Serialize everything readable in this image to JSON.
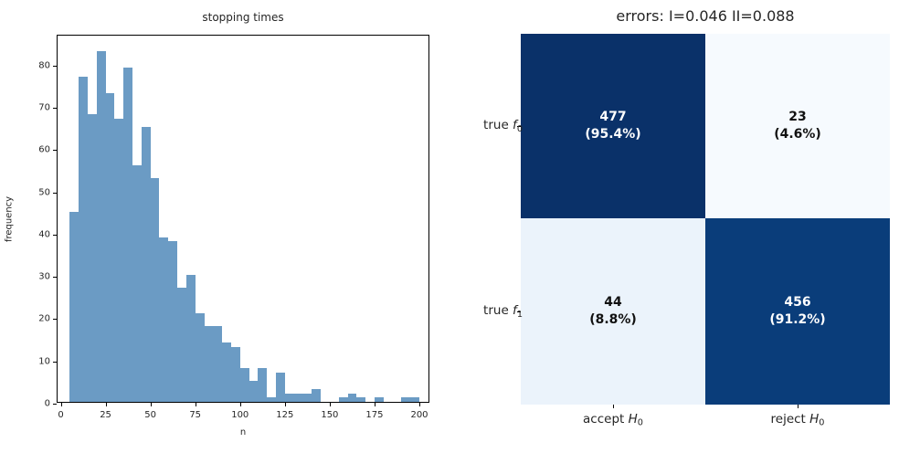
{
  "chart_data": [
    {
      "type": "bar",
      "subtype": "histogram",
      "title": "stopping times",
      "xlabel": "n",
      "ylabel": "frequency",
      "bin_start": 5,
      "bin_width": 5,
      "categories": [
        5,
        10,
        15,
        20,
        25,
        30,
        35,
        40,
        45,
        50,
        55,
        60,
        65,
        70,
        75,
        80,
        85,
        90,
        95,
        100,
        105,
        110,
        115,
        120,
        125,
        130,
        135,
        140,
        145,
        150,
        155,
        160,
        165,
        170,
        175,
        180,
        185,
        190,
        195
      ],
      "values": [
        45,
        77,
        68,
        83,
        73,
        67,
        79,
        56,
        65,
        53,
        39,
        38,
        27,
        30,
        21,
        18,
        18,
        14,
        13,
        8,
        5,
        8,
        1,
        7,
        2,
        2,
        2,
        3,
        0,
        0,
        1,
        2,
        1,
        0,
        1,
        0,
        0,
        1,
        1
      ],
      "xticks": [
        0,
        25,
        50,
        75,
        100,
        125,
        150,
        175,
        200
      ],
      "yticks": [
        0,
        10,
        20,
        30,
        40,
        50,
        60,
        70,
        80
      ],
      "xlim": [
        -2,
        208
      ],
      "ylim": [
        0,
        87
      ],
      "grid": false,
      "bar_color": "#6b9bc4"
    },
    {
      "type": "heatmap",
      "subtype": "confusion-matrix",
      "title": "errors: I=0.046 II=0.088",
      "row_labels": [
        {
          "prefix": "true ",
          "sym": "f",
          "sub": "0"
        },
        {
          "prefix": "true ",
          "sym": "f",
          "sub": "1"
        }
      ],
      "col_labels": [
        {
          "prefix": "accept ",
          "sym": "H",
          "sub": "0"
        },
        {
          "prefix": "reject ",
          "sym": "H",
          "sub": "0"
        }
      ],
      "counts": [
        [
          "477",
          "23"
        ],
        [
          "44",
          "456"
        ]
      ],
      "pct_labels": [
        [
          "(95.4%)",
          "(4.6%)"
        ],
        [
          "(8.8%)",
          "(91.2%)"
        ]
      ],
      "cell_colors": [
        [
          "#0a3169",
          "#f6fafe"
        ],
        [
          "#ebf3fb",
          "#0a3d7a"
        ]
      ],
      "cell_text_colors": [
        [
          "#ffffff",
          "#111111"
        ],
        [
          "#111111",
          "#ffffff"
        ]
      ],
      "type_I_error": "0.046",
      "type_II_error": "0.088"
    }
  ]
}
